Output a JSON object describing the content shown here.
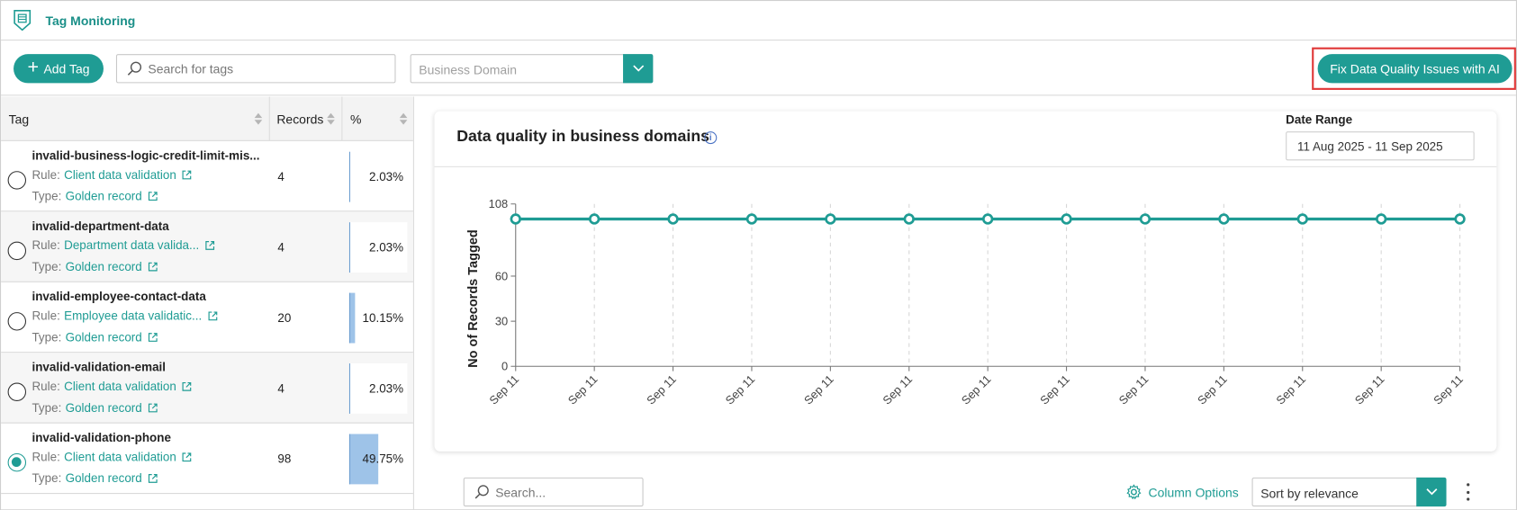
{
  "app": {
    "title": "Tag Monitoring",
    "logo_icon": "document-shield-icon"
  },
  "toolbar": {
    "add_tag_label": "Add Tag",
    "search_placeholder": "Search for tags",
    "business_domain_placeholder": "Business Domain",
    "fix_button_label": "Fix Data Quality Issues with AI"
  },
  "tag_table": {
    "columns": [
      "Tag",
      "Records",
      "%"
    ],
    "rule_prefix": "Rule:",
    "type_prefix": "Type:",
    "rows": [
      {
        "tag": "invalid-business-logic-credit-limit-mis...",
        "rule": "Client data validation",
        "type": "Golden record",
        "records": "4",
        "percent_label": "2.03%",
        "percent": 2.03,
        "selected": false
      },
      {
        "tag": "invalid-department-data",
        "rule": "Department data valida...",
        "type": "Golden record",
        "records": "4",
        "percent_label": "2.03%",
        "percent": 2.03,
        "selected": false
      },
      {
        "tag": "invalid-employee-contact-data",
        "rule": "Employee data validatic...",
        "type": "Golden record",
        "records": "20",
        "percent_label": "10.15%",
        "percent": 10.15,
        "selected": false
      },
      {
        "tag": "invalid-validation-email",
        "rule": "Client data validation",
        "type": "Golden record",
        "records": "4",
        "percent_label": "2.03%",
        "percent": 2.03,
        "selected": false
      },
      {
        "tag": "invalid-validation-phone",
        "rule": "Client data validation",
        "type": "Golden record",
        "records": "98",
        "percent_label": "49.75%",
        "percent": 49.75,
        "selected": true
      }
    ]
  },
  "chart_card": {
    "title": "Data quality in business domains",
    "date_range_label": "Date Range",
    "date_range_value": "11 Aug 2025 - 11 Sep 2025"
  },
  "chart_data": {
    "type": "line",
    "ylabel": "No of Records Tagged",
    "xlabel": "",
    "x": [
      "Sep 11",
      "Sep 11",
      "Sep 11",
      "Sep 11",
      "Sep 11",
      "Sep 11",
      "Sep 11",
      "Sep 11",
      "Sep 11",
      "Sep 11",
      "Sep 11",
      "Sep 11",
      "Sep 11"
    ],
    "series": [
      {
        "values": [
          98,
          98,
          98,
          98,
          98,
          98,
          98,
          98,
          98,
          98,
          98,
          98,
          98
        ]
      }
    ],
    "ylim": [
      0,
      108
    ],
    "yticks": [
      0,
      30,
      60,
      108
    ],
    "grid": "vertical dashed",
    "color": "#1f9c94"
  },
  "bottom_bar": {
    "search_placeholder": "Search...",
    "column_options_label": "Column Options",
    "sort_value": "Sort by relevance"
  },
  "colors": {
    "accent": "#1f9c94",
    "highlight_border": "#e03a3a",
    "percent_bar": "#9ec3e8"
  }
}
